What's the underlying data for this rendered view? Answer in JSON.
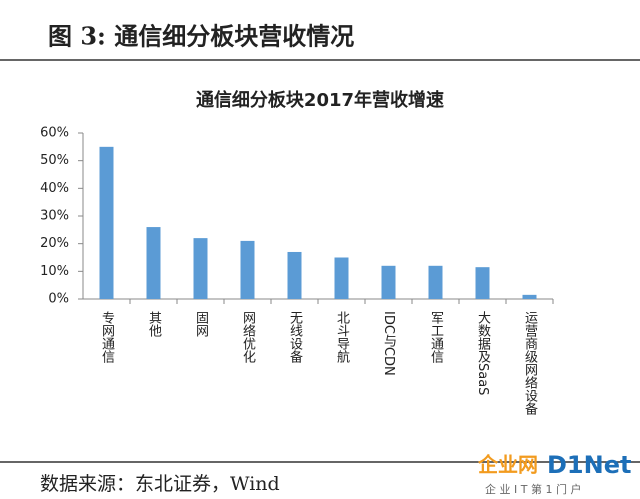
{
  "header": "图 3: 通信细分板块营收情况",
  "source": "数据来源：东北证券，Wind",
  "watermark": {
    "brand": "企业网",
    "logo": "D1Net",
    "slogan": "企 业 I T 第 1 门 户"
  },
  "chart_data": {
    "type": "bar",
    "title": "通信细分板块2017年营收增速",
    "categories": [
      "专网通信",
      "其他",
      "固网",
      "网络优化",
      "无线设备",
      "北斗导航",
      "IDC与CDN",
      "军工通信",
      "大数据及SaaS",
      "运营商级网络设备"
    ],
    "values": [
      55,
      26,
      22,
      21,
      17,
      15,
      12,
      12,
      11.5,
      1.5
    ],
    "color": "#5b9bd5",
    "ylim": [
      0,
      60
    ],
    "yticks": [
      {
        "value": 0,
        "label": "0%"
      },
      {
        "value": 10,
        "label": "10%"
      },
      {
        "value": 20,
        "label": "20%"
      },
      {
        "value": 30,
        "label": "30%"
      },
      {
        "value": 40,
        "label": "40%"
      },
      {
        "value": 50,
        "label": "50%"
      },
      {
        "value": 60,
        "label": "60%"
      }
    ],
    "grid": false
  }
}
